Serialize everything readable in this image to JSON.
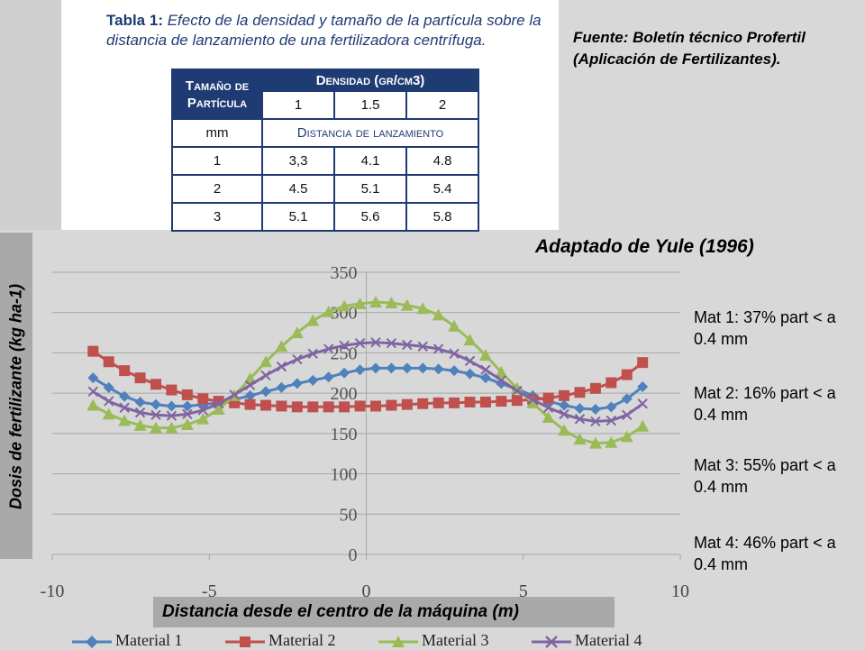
{
  "table": {
    "caption_label": "Tabla 1:",
    "caption_text": "Efecto de la densidad y tamaño de la partícula sobre la distancia de lanzamiento de una fertilizadora centrífuga.",
    "header_size": "Tamaño de Partícula",
    "header_density": "Densidad (gr/cm3)",
    "density_values": [
      "1",
      "1.5",
      "2"
    ],
    "unit": "mm",
    "subheader": "Distancia de lanzamiento",
    "rows": [
      {
        "size": "1",
        "values": [
          "3,3",
          "4.1",
          "4.8"
        ]
      },
      {
        "size": "2",
        "values": [
          "4.5",
          "5.1",
          "5.4"
        ]
      },
      {
        "size": "3",
        "values": [
          "5.1",
          "5.6",
          "5.8"
        ]
      }
    ]
  },
  "source_note": "Fuente: Boletín técnico Profertil (Aplicación de Fertilizantes).",
  "adapted_from": "Adaptado de Yule (1996)",
  "notes": [
    "Mat 1: 37% part < a 0.4 mm",
    "Mat 2: 16% part < a 0.4 mm",
    "Mat 3: 55% part < a 0.4 mm",
    "Mat 4: 46% part < a 0.4 mm"
  ],
  "chart_data": {
    "type": "line",
    "xlabel": "Distancia desde el centro de la máquina (m)",
    "ylabel": "Dosis de fertilizante (kg ha-1)",
    "xlim": [
      -10,
      10
    ],
    "ylim": [
      0,
      350
    ],
    "xticks": [
      -10,
      -5,
      0,
      5,
      10
    ],
    "yticks": [
      0,
      50,
      100,
      150,
      200,
      250,
      300,
      350
    ],
    "grid": true,
    "legend": "bottom",
    "x": [
      -8.7,
      -8.2,
      -7.7,
      -7.2,
      -6.7,
      -6.2,
      -5.7,
      -5.2,
      -4.7,
      -4.2,
      -3.7,
      -3.2,
      -2.7,
      -2.2,
      -1.7,
      -1.2,
      -0.7,
      -0.2,
      0.3,
      0.8,
      1.3,
      1.8,
      2.3,
      2.8,
      3.3,
      3.8,
      4.3,
      4.8,
      5.3,
      5.8,
      6.3,
      6.8,
      7.3,
      7.8,
      8.3,
      8.8
    ],
    "series": [
      {
        "name": "Material 1",
        "color": "#4f81bd",
        "marker": "diamond",
        "values": [
          219,
          207,
          196,
          189,
          186,
          184,
          184,
          186,
          188,
          192,
          197,
          202,
          207,
          212,
          216,
          220,
          225,
          229,
          231,
          231,
          231,
          231,
          230,
          228,
          224,
          219,
          212,
          205,
          197,
          190,
          185,
          181,
          180,
          183,
          193,
          208
        ]
      },
      {
        "name": "Material 2",
        "color": "#c0504d",
        "marker": "square",
        "values": [
          252,
          239,
          228,
          219,
          211,
          204,
          198,
          193,
          190,
          188,
          186,
          185,
          184,
          183,
          183,
          183,
          183,
          184,
          184,
          185,
          186,
          187,
          188,
          188,
          189,
          189,
          190,
          191,
          192,
          194,
          197,
          201,
          206,
          213,
          223,
          238
        ]
      },
      {
        "name": "Material 3",
        "color": "#9bbb59",
        "marker": "triangle",
        "values": [
          185,
          174,
          166,
          160,
          157,
          157,
          161,
          168,
          180,
          197,
          218,
          239,
          258,
          275,
          290,
          301,
          308,
          311,
          313,
          312,
          309,
          305,
          297,
          283,
          266,
          247,
          226,
          206,
          188,
          170,
          154,
          143,
          138,
          139,
          146,
          159
        ]
      },
      {
        "name": "Material 4",
        "color": "#8064a2",
        "marker": "x",
        "values": [
          202,
          190,
          182,
          176,
          173,
          172,
          174,
          179,
          187,
          198,
          210,
          222,
          233,
          242,
          249,
          255,
          259,
          262,
          263,
          262,
          260,
          258,
          255,
          249,
          240,
          229,
          216,
          203,
          192,
          182,
          174,
          168,
          165,
          166,
          173,
          187
        ]
      }
    ]
  }
}
